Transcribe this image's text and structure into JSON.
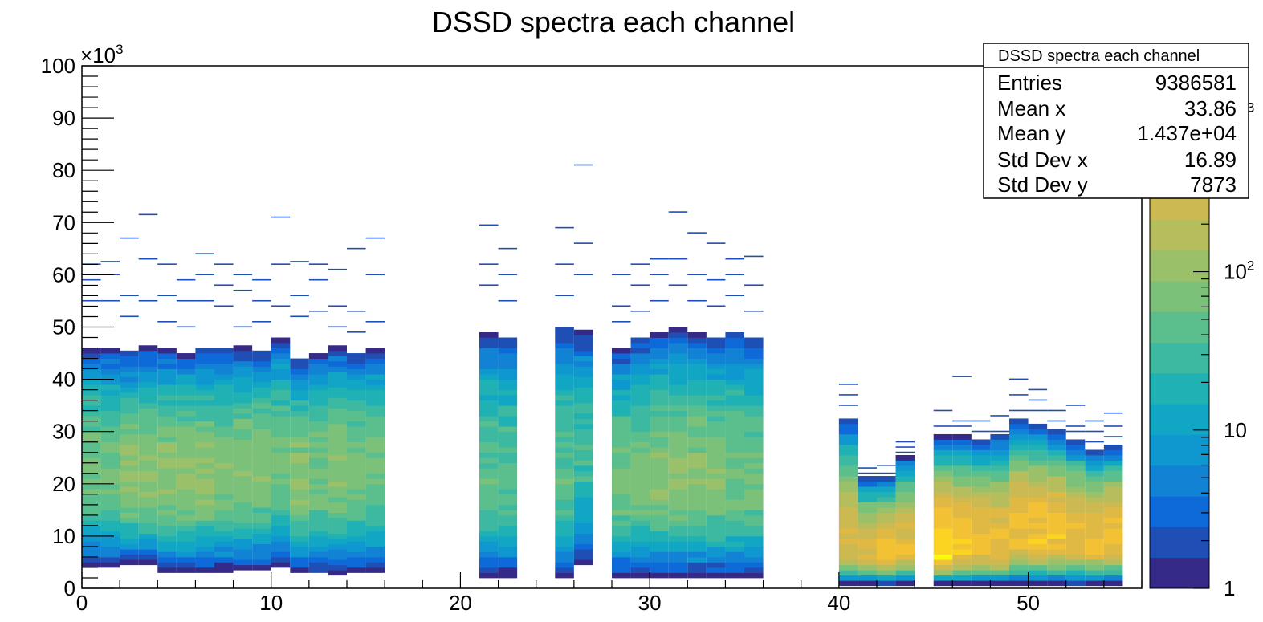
{
  "chart_data": {
    "type": "heatmap",
    "title": "DSSD spectra each channel",
    "xlabel": "",
    "ylabel": "",
    "xlim": [
      0,
      56
    ],
    "ylim": [
      0,
      100000
    ],
    "x_ticks": [
      "0",
      "10",
      "20",
      "30",
      "40",
      "50"
    ],
    "x_tick_values": [
      0,
      10,
      20,
      30,
      40,
      50
    ],
    "y_ticks": [
      "0",
      "10",
      "20",
      "30",
      "40",
      "50",
      "60",
      "70",
      "80",
      "90",
      "100"
    ],
    "y_tick_values": [
      0,
      10000,
      20000,
      30000,
      40000,
      50000,
      60000,
      70000,
      80000,
      90000,
      100000
    ],
    "y_multiplier_base": "×10",
    "y_multiplier_exp": "3",
    "z_scale": "log",
    "z_ticks": [
      {
        "label": "1",
        "value": 1
      },
      {
        "label": "10",
        "value": 10
      },
      {
        "label": "10",
        "sup": "2",
        "value": 100
      },
      {
        "label": "10",
        "sup": "3",
        "value": 1000
      }
    ],
    "z_range": [
      1,
      2000
    ],
    "palette": [
      "#352a87",
      "#1f4fb5",
      "#0d6ad8",
      "#1282d4",
      "#0f98cf",
      "#10a6c4",
      "#1fb1b3",
      "#3db9a1",
      "#5bbf8d",
      "#7cc17a",
      "#9ac06a",
      "#b5bd5d",
      "#ccb952",
      "#e0b944",
      "#f3c234",
      "#fbd422",
      "#f9fb0e"
    ],
    "channels": [
      {
        "x": 0,
        "ymin": 4000,
        "ymax": 46000,
        "peak": 22000,
        "intensity": 0.55,
        "outliers": [
          55000,
          59000,
          62000
        ]
      },
      {
        "x": 1,
        "ymin": 4000,
        "ymax": 46000,
        "peak": 22000,
        "intensity": 0.55,
        "outliers": [
          55000,
          60000,
          62500
        ]
      },
      {
        "x": 2,
        "ymin": 4500,
        "ymax": 45000,
        "peak": 20000,
        "intensity": 0.6,
        "outliers": [
          52000,
          56000,
          67000
        ]
      },
      {
        "x": 3,
        "ymin": 4500,
        "ymax": 46000,
        "peak": 20000,
        "intensity": 0.6,
        "outliers": [
          55000,
          63000,
          71500
        ]
      },
      {
        "x": 4,
        "ymin": 3000,
        "ymax": 46000,
        "peak": 21000,
        "intensity": 0.6,
        "outliers": [
          51000,
          56000,
          62000
        ]
      },
      {
        "x": 5,
        "ymin": 3000,
        "ymax": 45000,
        "peak": 21000,
        "intensity": 0.6,
        "outliers": [
          50000,
          55000,
          59000
        ]
      },
      {
        "x": 6,
        "ymin": 3000,
        "ymax": 46000,
        "peak": 21000,
        "intensity": 0.6,
        "outliers": [
          55000,
          60000,
          64000
        ]
      },
      {
        "x": 7,
        "ymin": 3000,
        "ymax": 46000,
        "peak": 21000,
        "intensity": 0.58,
        "outliers": [
          54000,
          58000,
          62000
        ]
      },
      {
        "x": 8,
        "ymin": 3500,
        "ymax": 46000,
        "peak": 22000,
        "intensity": 0.58,
        "outliers": [
          50000,
          57000,
          60000
        ]
      },
      {
        "x": 9,
        "ymin": 3500,
        "ymax": 45000,
        "peak": 22000,
        "intensity": 0.58,
        "outliers": [
          51000,
          55000,
          59000
        ]
      },
      {
        "x": 10,
        "ymin": 4000,
        "ymax": 48000,
        "peak": 22000,
        "intensity": 0.55,
        "outliers": [
          54000,
          62000,
          71000
        ]
      },
      {
        "x": 11,
        "ymin": 3000,
        "ymax": 44000,
        "peak": 20000,
        "intensity": 0.6,
        "outliers": [
          52000,
          56000,
          62500
        ]
      },
      {
        "x": 12,
        "ymin": 3000,
        "ymax": 45000,
        "peak": 21000,
        "intensity": 0.55,
        "outliers": [
          53000,
          59000,
          62000
        ]
      },
      {
        "x": 13,
        "ymin": 2500,
        "ymax": 46000,
        "peak": 22000,
        "intensity": 0.58,
        "outliers": [
          50000,
          54000,
          61000
        ]
      },
      {
        "x": 14,
        "ymin": 3000,
        "ymax": 45000,
        "peak": 22000,
        "intensity": 0.55,
        "outliers": [
          49000,
          53000,
          65000
        ]
      },
      {
        "x": 15,
        "ymin": 3000,
        "ymax": 46000,
        "peak": 22000,
        "intensity": 0.55,
        "outliers": [
          51000,
          60000,
          67000
        ]
      },
      {
        "x": 21,
        "ymin": 2000,
        "ymax": 49000,
        "peak": 20000,
        "intensity": 0.5,
        "outliers": [
          58000,
          62000,
          69500
        ]
      },
      {
        "x": 22,
        "ymin": 2000,
        "ymax": 48000,
        "peak": 20000,
        "intensity": 0.5,
        "outliers": [
          55000,
          60000,
          65000
        ]
      },
      {
        "x": 25,
        "ymin": 2000,
        "ymax": 50000,
        "peak": 20000,
        "intensity": 0.5,
        "outliers": [
          56000,
          62000,
          69000
        ]
      },
      {
        "x": 26,
        "ymin": 4500,
        "ymax": 49000,
        "peak": 25000,
        "intensity": 0.45,
        "outliers": [
          60000,
          66000,
          81000
        ]
      },
      {
        "x": 28,
        "ymin": 2000,
        "ymax": 46000,
        "peak": 20000,
        "intensity": 0.55,
        "outliers": [
          51000,
          54000,
          60000
        ]
      },
      {
        "x": 29,
        "ymin": 2000,
        "ymax": 48000,
        "peak": 20000,
        "intensity": 0.55,
        "outliers": [
          53000,
          58000,
          62000
        ]
      },
      {
        "x": 30,
        "ymin": 2000,
        "ymax": 49000,
        "peak": 20000,
        "intensity": 0.58,
        "outliers": [
          55000,
          60000,
          63000
        ]
      },
      {
        "x": 31,
        "ymin": 2000,
        "ymax": 50000,
        "peak": 20000,
        "intensity": 0.58,
        "outliers": [
          58000,
          63000,
          72000
        ]
      },
      {
        "x": 32,
        "ymin": 2000,
        "ymax": 49000,
        "peak": 20000,
        "intensity": 0.58,
        "outliers": [
          55000,
          60000,
          68000
        ]
      },
      {
        "x": 33,
        "ymin": 2000,
        "ymax": 48000,
        "peak": 20000,
        "intensity": 0.58,
        "outliers": [
          54000,
          59000,
          66000
        ]
      },
      {
        "x": 34,
        "ymin": 2000,
        "ymax": 49000,
        "peak": 20000,
        "intensity": 0.55,
        "outliers": [
          56000,
          60000,
          63000
        ]
      },
      {
        "x": 35,
        "ymin": 2000,
        "ymax": 48000,
        "peak": 20000,
        "intensity": 0.55,
        "outliers": [
          53000,
          58000,
          63500
        ]
      },
      {
        "x": 40,
        "ymin": 500,
        "ymax": 32000,
        "peak": 8000,
        "intensity": 0.78,
        "outliers": [
          35000,
          37000,
          39000
        ]
      },
      {
        "x": 41,
        "ymin": 500,
        "ymax": 21000,
        "peak": 6000,
        "intensity": 0.8,
        "outliers": [
          22000,
          23000
        ]
      },
      {
        "x": 42,
        "ymin": 500,
        "ymax": 21000,
        "peak": 6000,
        "intensity": 0.88,
        "outliers": [
          22000,
          23500
        ]
      },
      {
        "x": 43,
        "ymin": 500,
        "ymax": 25000,
        "peak": 7000,
        "intensity": 0.82,
        "outliers": [
          26000,
          27000,
          28000
        ]
      },
      {
        "x": 45,
        "ymin": 500,
        "ymax": 29000,
        "peak": 6000,
        "intensity": 0.95,
        "outliers": [
          31000,
          34000
        ]
      },
      {
        "x": 46,
        "ymin": 500,
        "ymax": 29000,
        "peak": 7000,
        "intensity": 0.88,
        "outliers": [
          31000,
          32000,
          40500
        ]
      },
      {
        "x": 47,
        "ymin": 500,
        "ymax": 28000,
        "peak": 7000,
        "intensity": 0.85,
        "outliers": [
          30000,
          32000
        ]
      },
      {
        "x": 48,
        "ymin": 500,
        "ymax": 29000,
        "peak": 7000,
        "intensity": 0.85,
        "outliers": [
          30000,
          33000
        ]
      },
      {
        "x": 49,
        "ymin": 500,
        "ymax": 32000,
        "peak": 9000,
        "intensity": 0.85,
        "outliers": [
          34000,
          37000,
          40000
        ]
      },
      {
        "x": 50,
        "ymin": 500,
        "ymax": 31000,
        "peak": 9000,
        "intensity": 0.88,
        "outliers": [
          34000,
          36000,
          38000
        ]
      },
      {
        "x": 51,
        "ymin": 500,
        "ymax": 30000,
        "peak": 9000,
        "intensity": 0.88,
        "outliers": [
          32000,
          34000
        ]
      },
      {
        "x": 52,
        "ymin": 500,
        "ymax": 28000,
        "peak": 9000,
        "intensity": 0.85,
        "outliers": [
          30000,
          31000,
          35000
        ]
      },
      {
        "x": 53,
        "ymin": 500,
        "ymax": 26000,
        "peak": 8000,
        "intensity": 0.85,
        "outliers": [
          28000,
          30000,
          32000
        ]
      },
      {
        "x": 54,
        "ymin": 500,
        "ymax": 27000,
        "peak": 9000,
        "intensity": 0.85,
        "outliers": [
          29000,
          31000,
          33500
        ]
      }
    ]
  },
  "stats_box": {
    "title": "DSSD spectra each channel",
    "rows": [
      {
        "label": "Entries",
        "value": "9386581"
      },
      {
        "label": "Mean x",
        "value": "33.86"
      },
      {
        "label": "Mean y",
        "value": "1.437e+04"
      },
      {
        "label": "Std Dev x",
        "value": "16.89"
      },
      {
        "label": "Std Dev y",
        "value": "7873"
      }
    ]
  }
}
